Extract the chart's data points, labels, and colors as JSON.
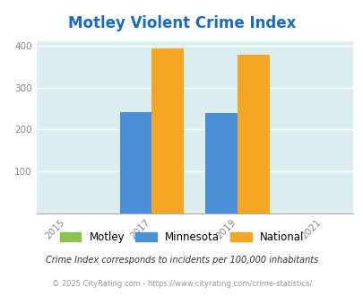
{
  "title": "Motley Violent Crime Index",
  "title_color": "#1a6bbf",
  "years": [
    2015,
    2017,
    2019,
    2021
  ],
  "bar_years": [
    2017,
    2019
  ],
  "motley_values": [
    0,
    0
  ],
  "minnesota_values": [
    242,
    238
  ],
  "national_values": [
    393,
    379
  ],
  "motley_color": "#8bc34a",
  "minnesota_color": "#4a90d9",
  "national_color": "#f5a623",
  "bg_color": "#dceef0",
  "ylim": [
    0,
    410
  ],
  "yticks": [
    0,
    100,
    200,
    300,
    400
  ],
  "bar_width": 0.75,
  "legend_labels": [
    "Motley",
    "Minnesota",
    "National"
  ],
  "footnote1": "Crime Index corresponds to incidents per 100,000 inhabitants",
  "footnote2": "© 2025 CityRating.com - https://www.cityrating.com/crime-statistics/",
  "grid_color": "#ffffff",
  "axis_label_color": "#888888",
  "xlim": [
    2014.3,
    2021.7
  ]
}
